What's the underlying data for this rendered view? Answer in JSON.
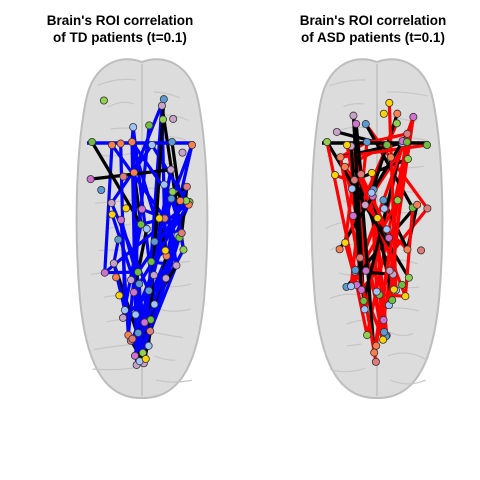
{
  "panels": [
    {
      "title_line1": "Brain's ROI correlation",
      "title_line2": "of TD patients (t=0.1)",
      "edge_color": "#0000ff",
      "shared_edge_color": "#000000"
    },
    {
      "title_line1": "Brain's ROI correlation",
      "title_line2": "of ASD patients (t=0.1)",
      "edge_color": "#ff0000",
      "shared_edge_color": "#000000"
    }
  ],
  "colors": {
    "brain_fill": "#dcdcdc",
    "brain_edge": "#bdbdbd",
    "node_palette": [
      "#8fd14f",
      "#6fbf3f",
      "#5b9bd5",
      "#c8a2c8",
      "#ffd400",
      "#e07b7b",
      "#a0c4ff",
      "#d070d0",
      "#ff7f50"
    ]
  }
}
